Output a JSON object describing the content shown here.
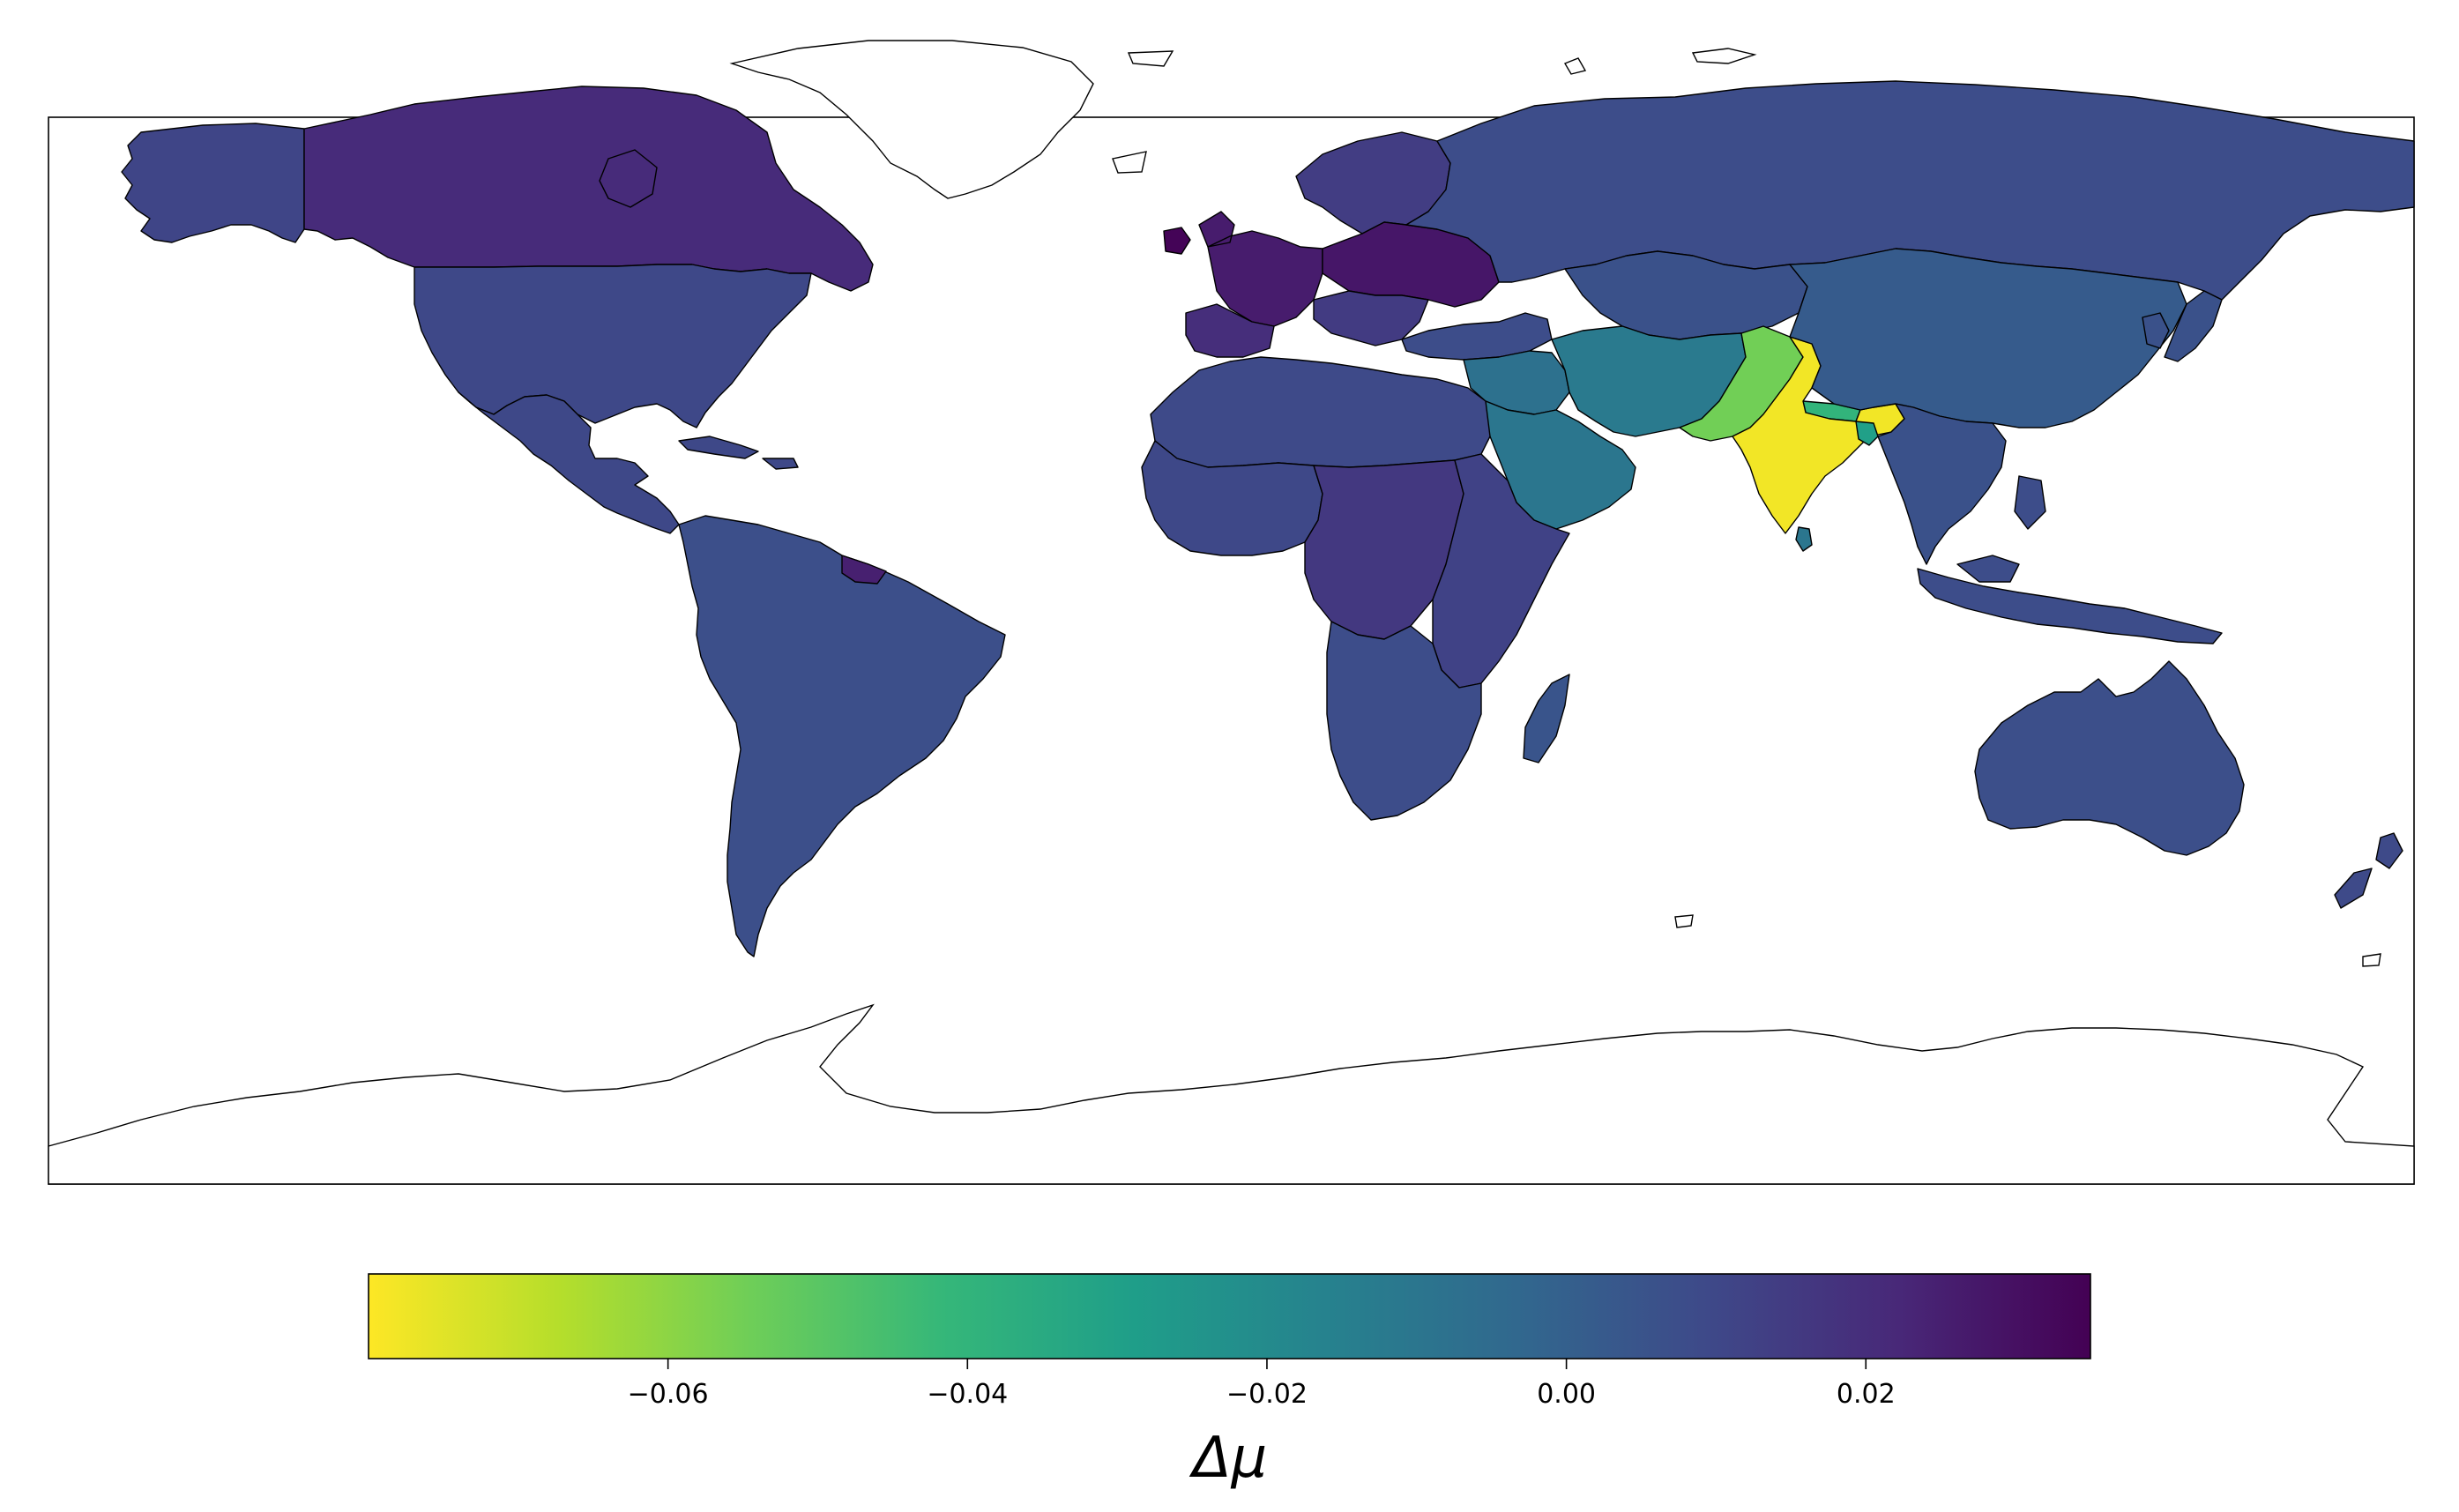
{
  "map": {
    "projection": "plate-carree",
    "colormap": "viridis-reversed",
    "frame": true,
    "countries": [
      {
        "id": "canada",
        "value": 0.021
      },
      {
        "id": "greenland",
        "value": null
      },
      {
        "id": "alaska",
        "value": 0.011
      },
      {
        "id": "usa",
        "value": 0.01
      },
      {
        "id": "mexico-central-america",
        "value": 0.01
      },
      {
        "id": "caribbean",
        "value": 0.01
      },
      {
        "id": "south-america",
        "value": 0.007
      },
      {
        "id": "guiana",
        "value": 0.025
      },
      {
        "id": "western-europe",
        "value": 0.026
      },
      {
        "id": "ireland",
        "value": 0.034
      },
      {
        "id": "iberia",
        "value": 0.02
      },
      {
        "id": "scandinavia",
        "value": 0.014
      },
      {
        "id": "eastern-europe",
        "value": 0.028
      },
      {
        "id": "balkans",
        "value": 0.015
      },
      {
        "id": "russia",
        "value": 0.008
      },
      {
        "id": "kazakhstan-central-asia",
        "value": 0.006
      },
      {
        "id": "turkey-caucasus",
        "value": 0.008
      },
      {
        "id": "middle-east",
        "value": -0.008
      },
      {
        "id": "arabia",
        "value": -0.01
      },
      {
        "id": "iran-afghanistan",
        "value": -0.012
      },
      {
        "id": "pakistan",
        "value": -0.055
      },
      {
        "id": "india",
        "value": -0.078
      },
      {
        "id": "bangladesh",
        "value": -0.03
      },
      {
        "id": "nepal",
        "value": -0.04
      },
      {
        "id": "china-mongolia",
        "value": 0.002
      },
      {
        "id": "korea-japan",
        "value": 0.006
      },
      {
        "id": "southeast-asia",
        "value": 0.006
      },
      {
        "id": "indonesia-philippines",
        "value": 0.008
      },
      {
        "id": "north-africa",
        "value": 0.009
      },
      {
        "id": "west-africa",
        "value": 0.01
      },
      {
        "id": "central-africa",
        "value": 0.016
      },
      {
        "id": "east-africa",
        "value": 0.012
      },
      {
        "id": "southern-africa",
        "value": 0.008
      },
      {
        "id": "madagascar",
        "value": 0.005
      },
      {
        "id": "australia",
        "value": 0.007
      },
      {
        "id": "new-zealand",
        "value": 0.009
      },
      {
        "id": "sri-lanka",
        "value": -0.01
      },
      {
        "id": "antarctica",
        "value": null
      }
    ]
  },
  "colorbar": {
    "vmin": -0.08,
    "vmax": 0.035,
    "ticks": [
      -0.06,
      -0.04,
      -0.02,
      0.0,
      0.02
    ],
    "tick_labels": [
      "−0.06",
      "−0.04",
      "−0.02",
      "0.00",
      "0.02"
    ],
    "label": "Δμ",
    "stops": [
      "#fde725",
      "#b5de2b",
      "#6ece58",
      "#35b779",
      "#1f9e89",
      "#26828e",
      "#31688e",
      "#3e4989",
      "#482878",
      "#440154"
    ]
  }
}
